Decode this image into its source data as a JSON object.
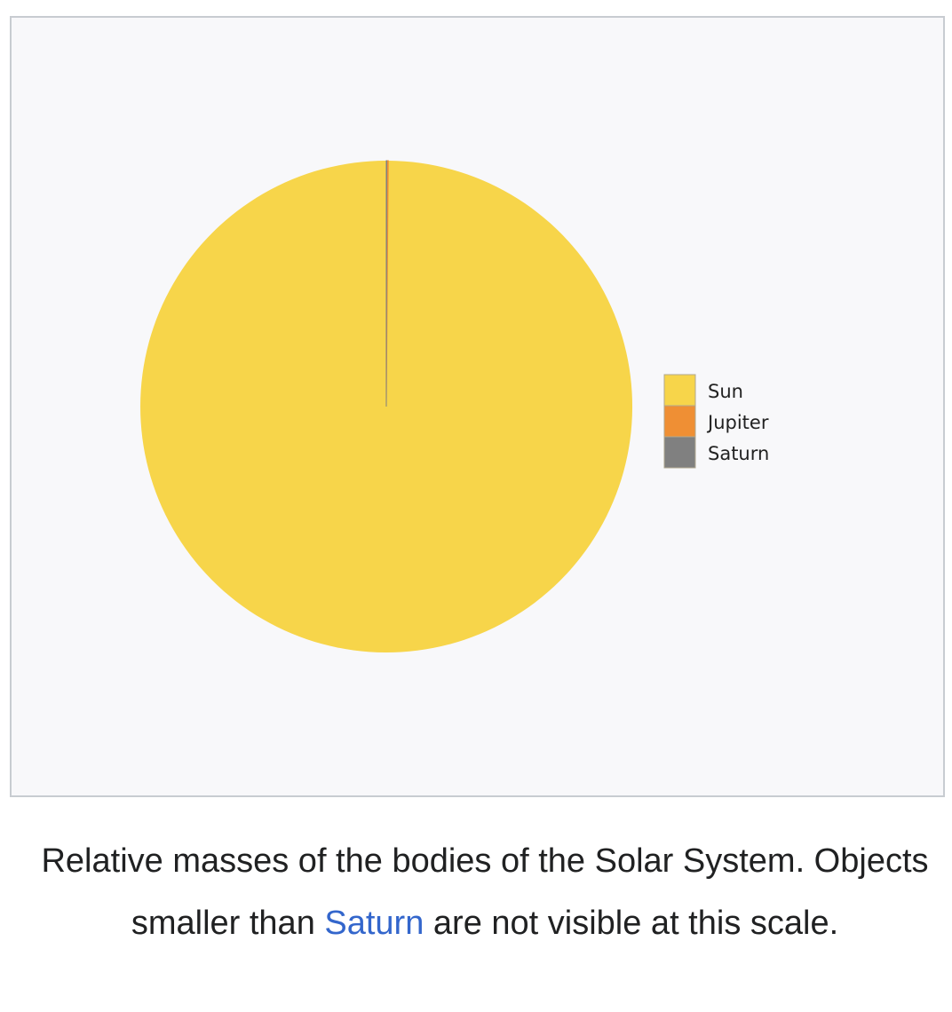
{
  "chart_data": {
    "type": "pie",
    "categories": [
      "Sun",
      "Jupiter",
      "Saturn"
    ],
    "values": [
      99.87,
      0.1,
      0.03
    ],
    "unit": "%",
    "start_angle_deg": 0,
    "direction": "counterclockwise",
    "legend": {
      "placement": "right",
      "entries": [
        "Sun",
        "Jupiter",
        "Saturn"
      ]
    },
    "colors": [
      "#f7d54a",
      "#ef8f34",
      "#808080"
    ]
  },
  "caption": {
    "text_before": "Relative masses of the bodies of the Solar System. Objects smaller than ",
    "link": "Saturn",
    "text_after": " are not visible at this scale."
  },
  "colors": {
    "background": "#f8f8fa",
    "border": "#c8ccd1",
    "link": "#3366cc"
  }
}
